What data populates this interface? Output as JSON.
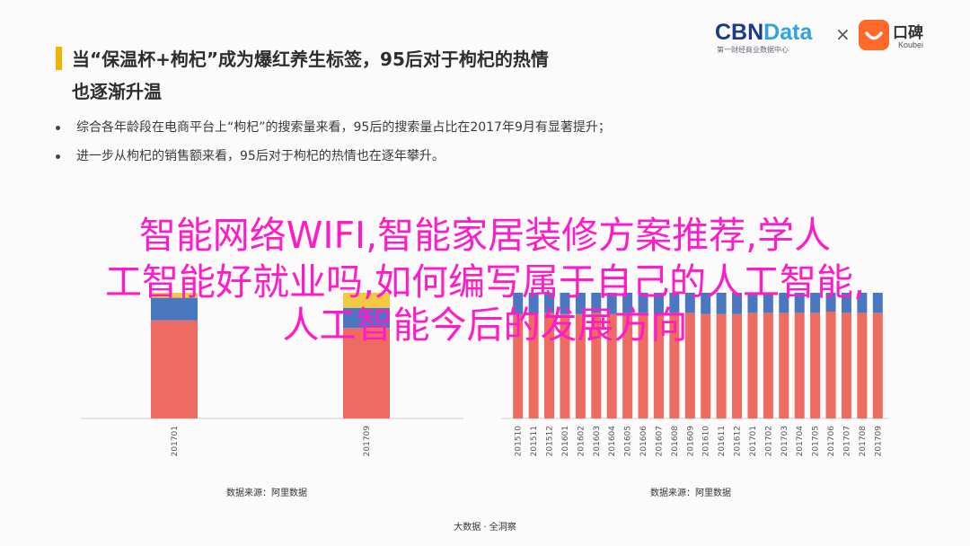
{
  "header": {
    "title_line1": "当“保温杯+枸杞”成为爆红养生标签，95后对于枸杞的热情",
    "title_line2": "也逐渐升温",
    "accent_color": "#f0b400"
  },
  "bullets": [
    "综合各年龄段在电商平台上“枸杞”的搜索量来看，95后的搜索量占比在2017年9月有显著提升；",
    "进一步从枸杞的销售额来看，95后对于枸杞的热情也在逐年攀升。"
  ],
  "logos": {
    "cbn_main": "CBN",
    "cbn_data": "Data",
    "cbn_sub": "第一财经商业数据中心",
    "separator": "×",
    "koubei_cn": "口碑",
    "koubei_en": "Koubei",
    "icon_names": [
      "cbndata-logo",
      "koubei-logo-icon"
    ]
  },
  "overlay": {
    "line1": "智能网络WIFI,智能家居装修方案推荐,学人",
    "line2": "工智能好就业吗,如何编写属于自己的人工智能,",
    "line3": "人工智能今后的发展方向",
    "color": "#ff1cc8"
  },
  "colors": {
    "red": "#ee6b62",
    "blue": "#4a78c0",
    "yellow": "#f5c842"
  },
  "chart_data": [
    {
      "type": "bar",
      "stacked": true,
      "categories": [
        "201701",
        "201709"
      ],
      "series": [
        {
          "color": "#ee6b62",
          "values": [
            0.78,
            0.72
          ]
        },
        {
          "color": "#4a78c0",
          "values": [
            0.18,
            0.16
          ]
        },
        {
          "color": "#f5c842",
          "values": [
            0.04,
            0.12
          ]
        }
      ],
      "ylim": [
        0,
        1
      ],
      "source": "数据来源：阿里数据"
    },
    {
      "type": "bar",
      "stacked": true,
      "categories": [
        "201510",
        "201511",
        "201512",
        "201601",
        "201602",
        "201603",
        "201604",
        "201605",
        "201606",
        "201607",
        "201608",
        "201609",
        "201610",
        "201611",
        "201612",
        "201701",
        "201702",
        "201703",
        "201704",
        "201705",
        "201706",
        "201707",
        "201708",
        "201709"
      ],
      "series": [
        {
          "color": "#ee6b62",
          "values": [
            0.83,
            0.83,
            0.84,
            0.83,
            0.83,
            0.84,
            0.83,
            0.84,
            0.84,
            0.83,
            0.84,
            0.84,
            0.83,
            0.83,
            0.83,
            0.84,
            0.84,
            0.84,
            0.84,
            0.84,
            0.85,
            0.84,
            0.84,
            0.84
          ]
        },
        {
          "color": "#4a78c0",
          "values": [
            0.17,
            0.17,
            0.16,
            0.17,
            0.17,
            0.16,
            0.17,
            0.16,
            0.16,
            0.17,
            0.16,
            0.16,
            0.17,
            0.17,
            0.17,
            0.16,
            0.16,
            0.16,
            0.16,
            0.16,
            0.15,
            0.16,
            0.16,
            0.16
          ]
        }
      ],
      "ylim": [
        0,
        1
      ],
      "source": "数据来源：阿里数据"
    }
  ],
  "footer": "大数据 · 全洞察"
}
